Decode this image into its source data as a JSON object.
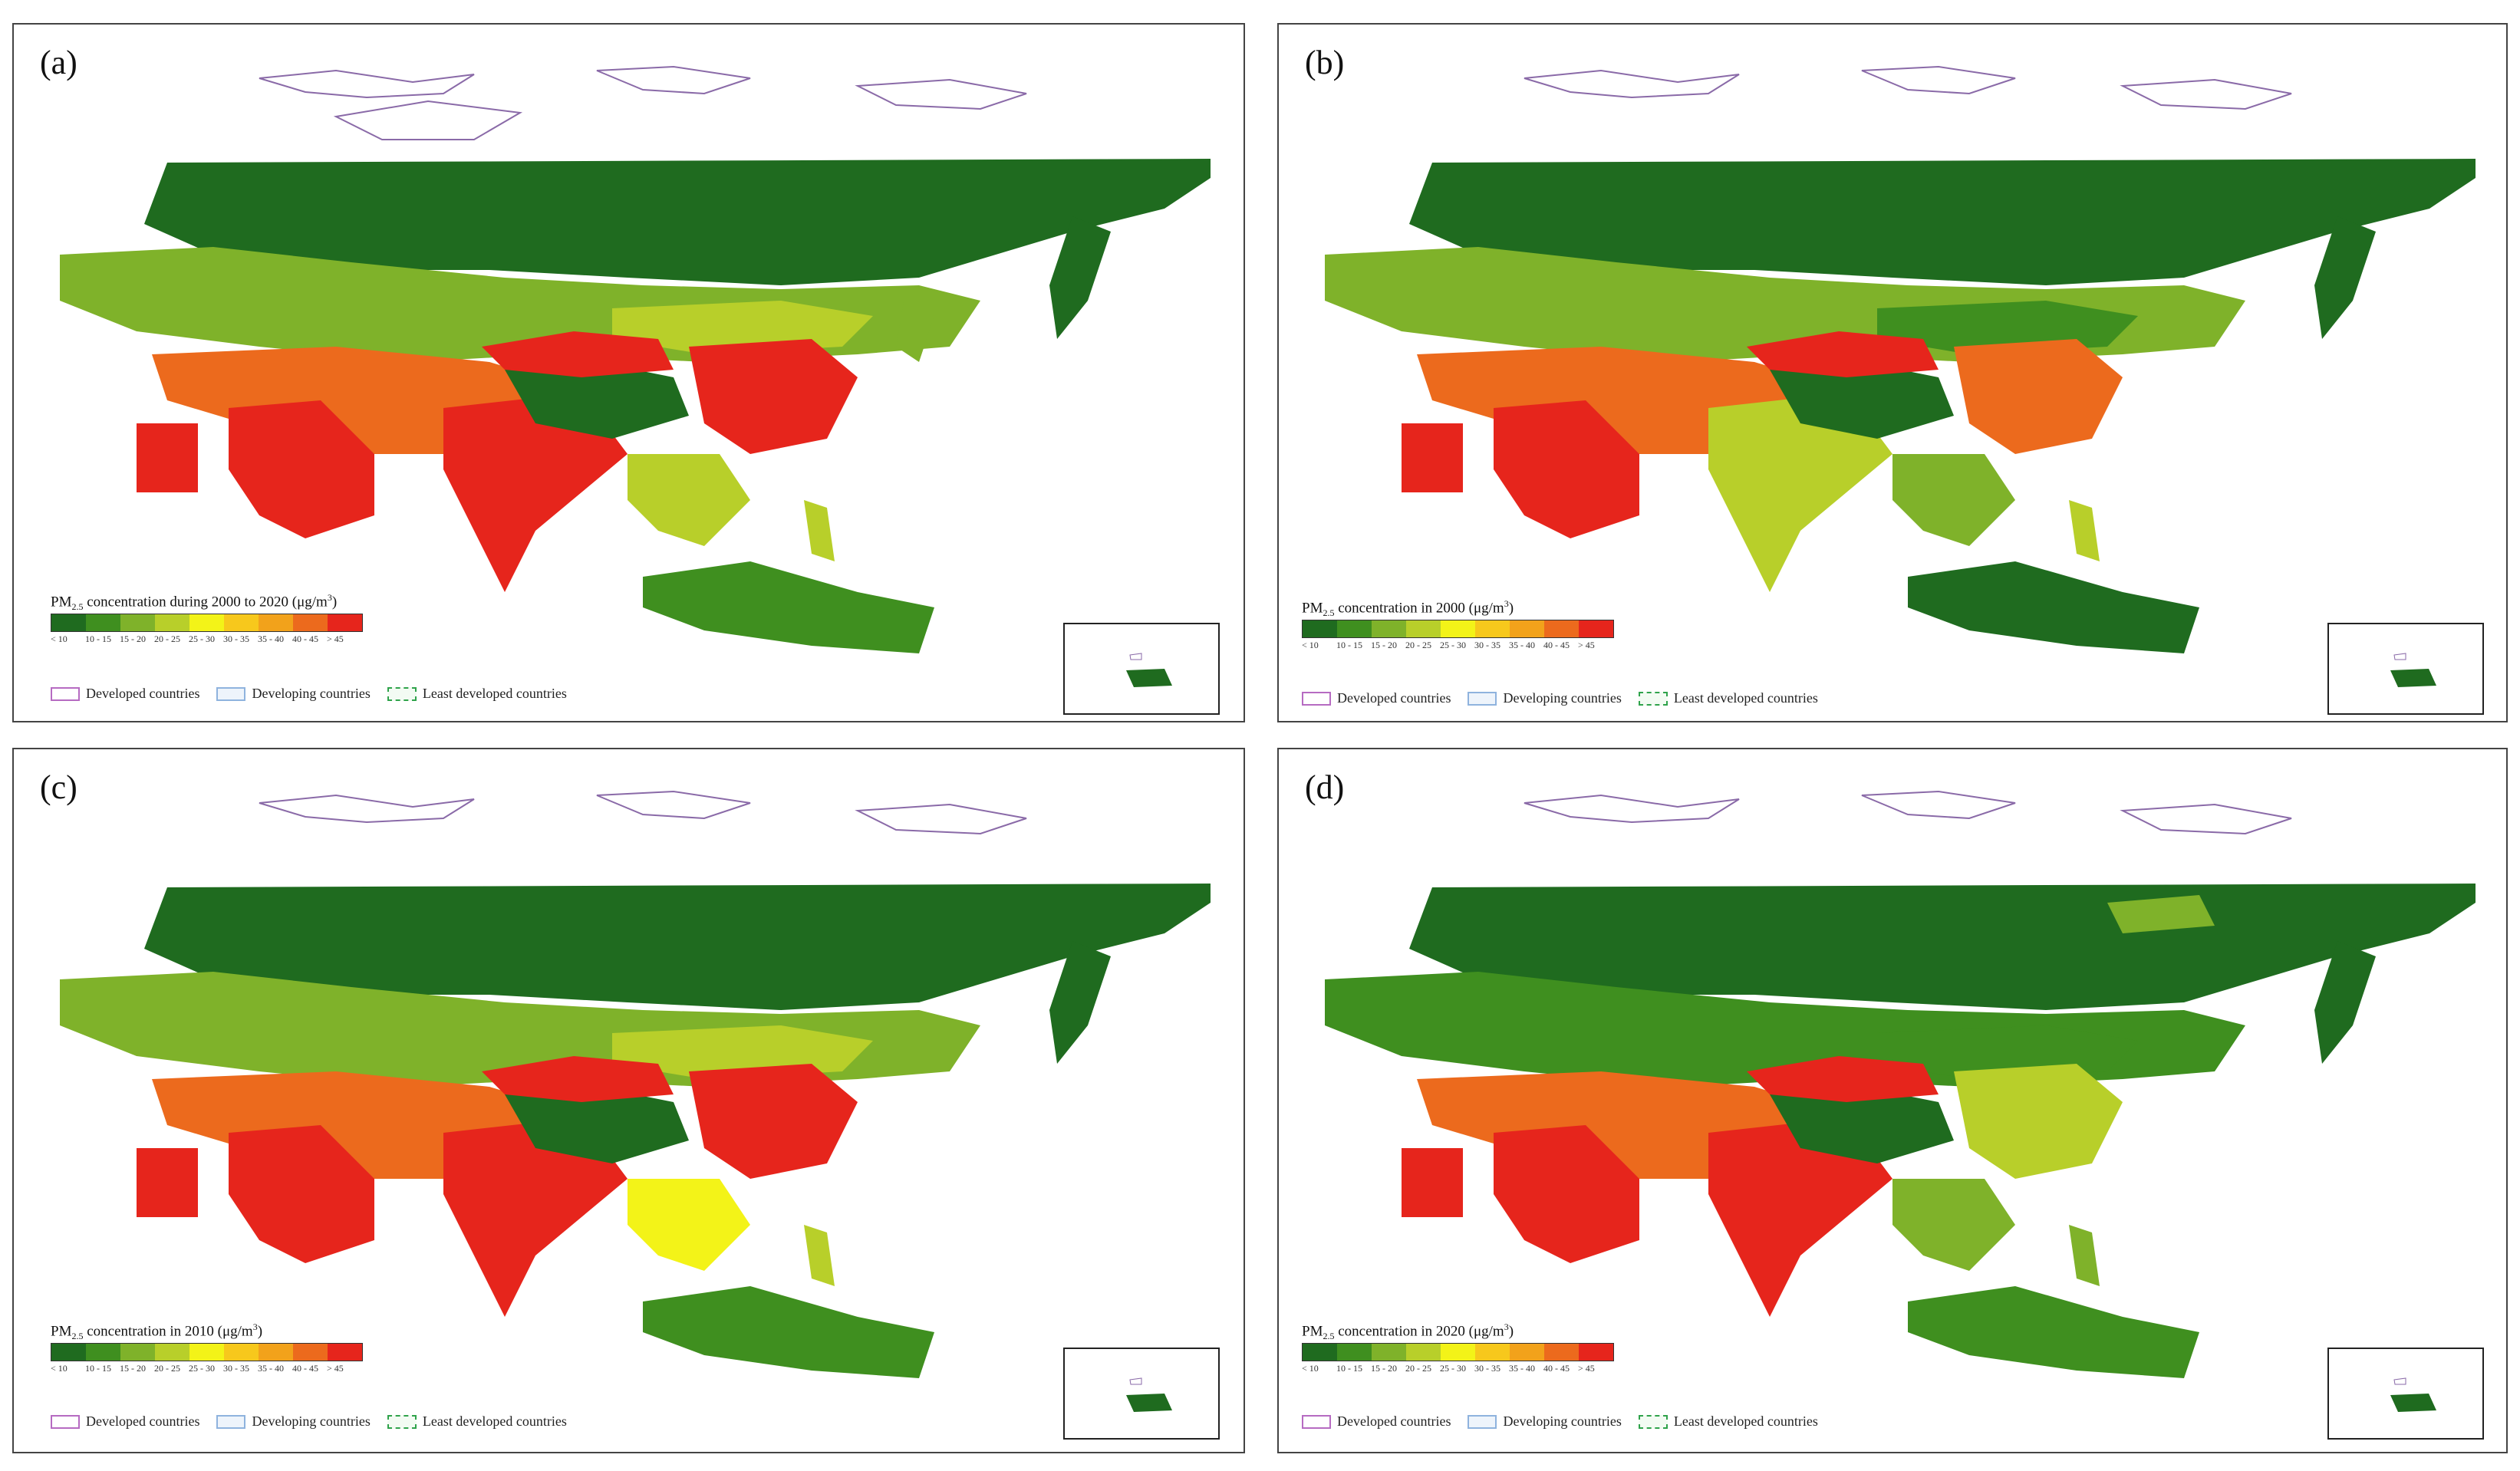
{
  "panels": [
    {
      "label": "(a)",
      "colorbar_title": {
        "prefix": "PM",
        "sub": "2.5",
        "rest": " concentration during 2000 to 2020 (μg/m",
        "sup": "3",
        "end": ")"
      },
      "dominant": "high"
    },
    {
      "label": "(b)",
      "colorbar_title": {
        "prefix": "PM",
        "sub": "2.5",
        "rest": " concentration in 2000 (μg/m",
        "sup": "3",
        "end": ")"
      },
      "dominant": "high"
    },
    {
      "label": "(c)",
      "colorbar_title": {
        "prefix": "PM",
        "sub": "2.5",
        "rest": " concentration in 2010 (μg/m",
        "sup": "3",
        "end": ")"
      },
      "dominant": "high"
    },
    {
      "label": "(d)",
      "colorbar_title": {
        "prefix": "PM",
        "sub": "2.5",
        "rest": " concentration in 2020 (μg/m",
        "sup": "3",
        "end": ")"
      },
      "dominant": "high"
    }
  ],
  "colorbar": {
    "classes": [
      "< 10",
      "10 - 15",
      "15 - 20",
      "20 - 25",
      "25 - 30",
      "30 - 35",
      "35 - 40",
      "40 - 45",
      "> 45"
    ],
    "colors": [
      "#1f6b1f",
      "#3f8f1f",
      "#7fb22a",
      "#b8cf2a",
      "#f3f318",
      "#f7c81c",
      "#f2a21b",
      "#ec6a1d",
      "#e6251c"
    ]
  },
  "legend": {
    "developed": "Developed countries",
    "developing": "Developing countries",
    "least": "Least developed countries"
  }
}
